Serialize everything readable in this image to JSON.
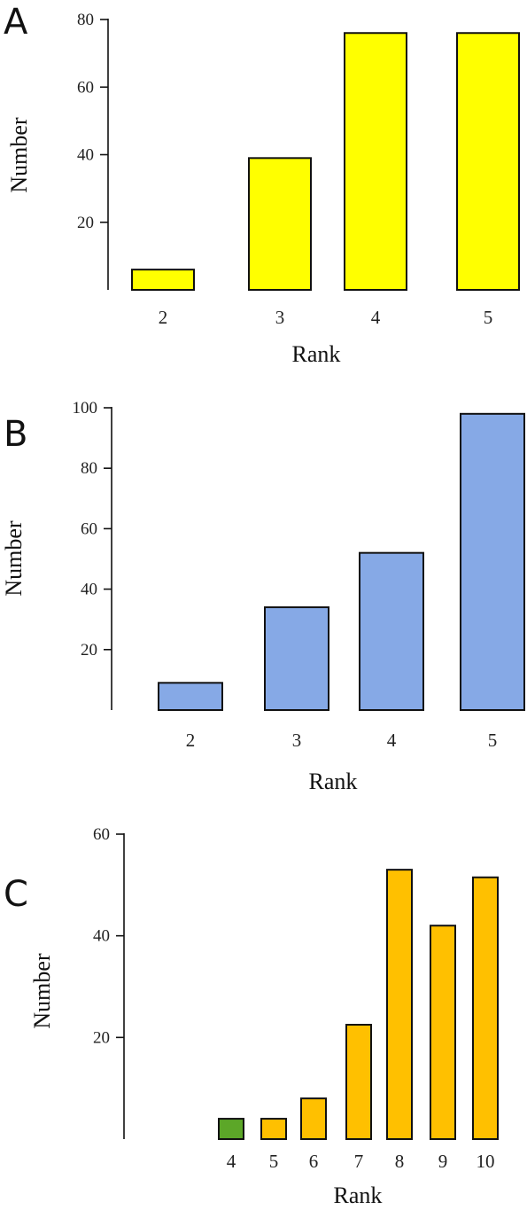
{
  "chart_data": [
    {
      "type": "bar",
      "panel_label": "A",
      "categories": [
        "2",
        "3",
        "4",
        "5"
      ],
      "values": [
        6,
        39,
        76,
        76
      ],
      "xlabel": "Rank",
      "ylabel": "Number",
      "ylim": [
        0,
        80
      ],
      "yticks": [
        20,
        40,
        60,
        80
      ],
      "bar_colors": [
        "#ffff00",
        "#ffff00",
        "#ffff00",
        "#ffff00"
      ],
      "grid": false,
      "legend": "none"
    },
    {
      "type": "bar",
      "panel_label": "B",
      "categories": [
        "2",
        "3",
        "4",
        "5"
      ],
      "values": [
        9,
        34,
        52,
        98
      ],
      "xlabel": "Rank",
      "ylabel": "Number",
      "ylim": [
        0,
        100
      ],
      "yticks": [
        20,
        40,
        60,
        80,
        100
      ],
      "bar_colors": [
        "#86a9e6",
        "#86a9e6",
        "#86a9e6",
        "#86a9e6"
      ],
      "grid": false,
      "legend": "none"
    },
    {
      "type": "bar",
      "panel_label": "C",
      "categories": [
        "4",
        "5",
        "6",
        "7",
        "8",
        "9",
        "10"
      ],
      "values": [
        4,
        4,
        8,
        22.5,
        53,
        42,
        51.5
      ],
      "xlabel": "Rank",
      "ylabel": "Number",
      "ylim": [
        0,
        60
      ],
      "yticks": [
        20,
        40,
        60
      ],
      "bar_colors": [
        "#5ca728",
        "#ffc000",
        "#ffc000",
        "#ffc000",
        "#ffc000",
        "#ffc000",
        "#ffc000"
      ],
      "grid": false,
      "legend": "none"
    }
  ]
}
